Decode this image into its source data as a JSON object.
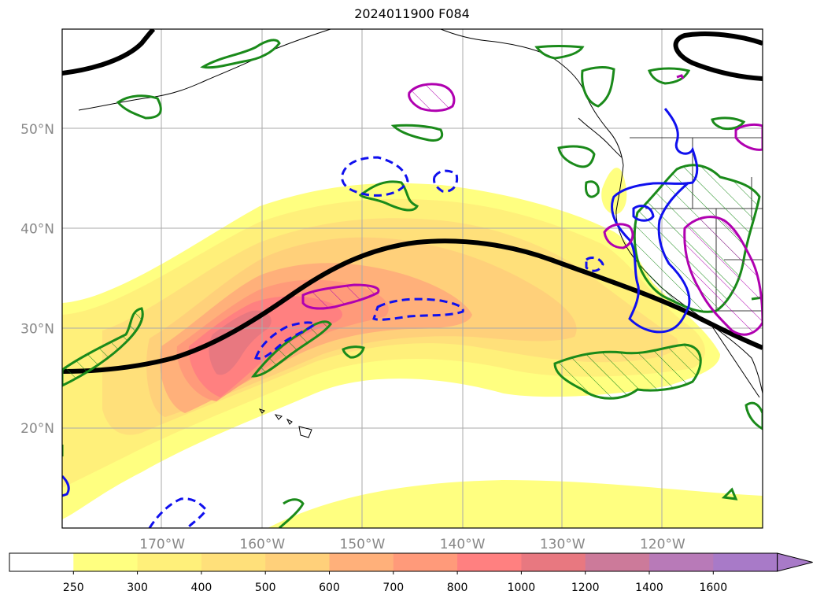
{
  "title": "2024011900 F084",
  "map": {
    "lat_labels": [
      {
        "lat": 50,
        "text": "50°N"
      },
      {
        "lat": 40,
        "text": "40°N"
      },
      {
        "lat": 30,
        "text": "30°N"
      },
      {
        "lat": 20,
        "text": "20°N"
      }
    ],
    "lon_labels": [
      {
        "lon": -170,
        "text": "170°W"
      },
      {
        "lon": -160,
        "text": "160°W"
      },
      {
        "lon": -150,
        "text": "150°W"
      },
      {
        "lon": -140,
        "text": "140°W"
      },
      {
        "lon": -130,
        "text": "130°W"
      },
      {
        "lon": -120,
        "text": "120°W"
      }
    ],
    "extent": {
      "lon_min": -180,
      "lon_max": -110,
      "lat_min": 10,
      "lat_max": 60
    }
  },
  "colorbar": {
    "ticks": [
      "250",
      "300",
      "400",
      "500",
      "600",
      "700",
      "800",
      "1000",
      "1200",
      "1400",
      "1600"
    ],
    "colors": [
      "#ffffff",
      "#ffff80",
      "#fff07a",
      "#ffe07a",
      "#ffd07a",
      "#ffb07a",
      "#ff9a7a",
      "#ff8080",
      "#e87880",
      "#cc7a9a",
      "#b87ab8",
      "#a87ac8"
    ],
    "extend": "max"
  }
}
